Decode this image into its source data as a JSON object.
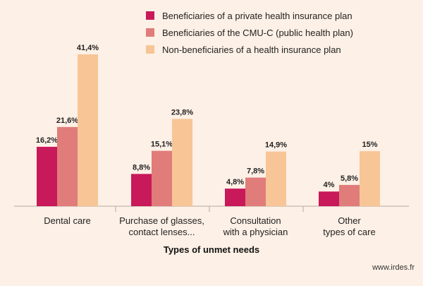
{
  "chart_data": {
    "type": "bar",
    "categories": [
      [
        "Dental care"
      ],
      [
        "Purchase of glasses,",
        "contact lenses..."
      ],
      [
        "Consultation",
        "with a physician"
      ],
      [
        "Other",
        "types of care"
      ]
    ],
    "series": [
      {
        "name": "Beneficiaries of a private health insurance plan",
        "values": [
          16.2,
          8.8,
          4.8,
          4.0
        ],
        "labels": [
          "16,2%",
          "8,8%",
          "4,8%",
          "4%"
        ],
        "color": "#c8195a"
      },
      {
        "name": "Beneficiaries of the CMU-C (public health plan)",
        "values": [
          21.6,
          15.1,
          7.8,
          5.8
        ],
        "labels": [
          "21,6%",
          "15,1%",
          "7,8%",
          "5,8%"
        ],
        "color": "#e07c7a"
      },
      {
        "name": "Non-beneficiaries of a health insurance plan",
        "values": [
          41.4,
          23.8,
          14.9,
          15.0
        ],
        "labels": [
          "41,4%",
          "23,8%",
          "14,9%",
          "15%"
        ],
        "color": "#f8c596"
      }
    ],
    "xlabel": "Types of unmet needs",
    "ylabel": "",
    "ylim": [
      0,
      45
    ],
    "grid": false,
    "legend_position": "top-right"
  },
  "source": "www.irdes.fr"
}
